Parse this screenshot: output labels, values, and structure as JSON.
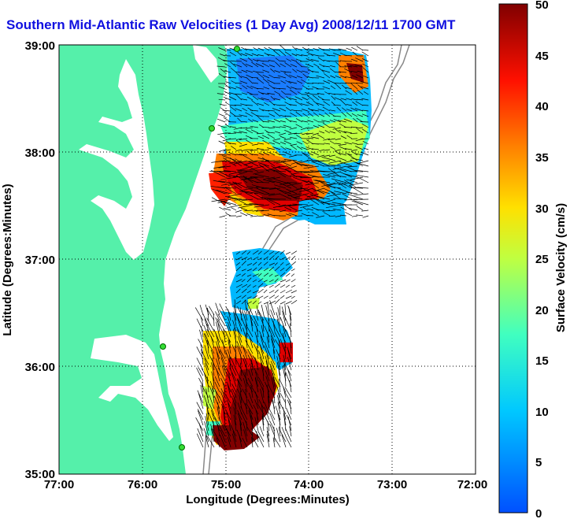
{
  "title": "Southern Mid-Atlantic Raw Velocities (1 Day Avg) 2008/12/11 1700 GMT",
  "map": {
    "xlabel": "Longitude (Degrees:Minutes)",
    "ylabel": "Latitude (Degrees:Minutes)",
    "x_ticks": [
      "77:00",
      "76:00",
      "75:00",
      "74:00",
      "73:00",
      "72:00"
    ],
    "y_ticks": [
      "39:00",
      "38:00",
      "37:00",
      "36:00",
      "35:00"
    ],
    "lon_range": [
      -77,
      -72
    ],
    "lat_range": [
      35,
      39
    ],
    "grid": true,
    "land_color": "#55f0aa",
    "water_color": "#ffffff"
  },
  "colorbar": {
    "label": "Surface Velocity (cm/s)",
    "ticks": [
      "50",
      "45",
      "40",
      "35",
      "30",
      "25",
      "20",
      "15",
      "10",
      "5",
      "0"
    ],
    "range": [
      0,
      50
    ],
    "colormap": "jet"
  },
  "stations": [
    "station-1",
    "station-2",
    "station-3",
    "station-4"
  ]
}
